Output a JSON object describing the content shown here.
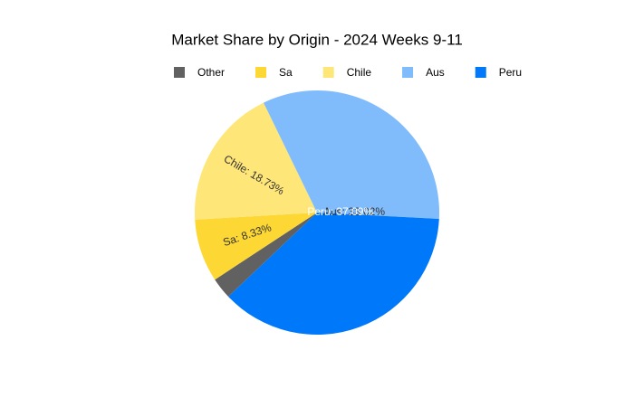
{
  "chart_data": {
    "type": "pie",
    "title": "Market Share by Origin - 2024 Weeks 9-11",
    "categories": [
      "Other",
      "Sa",
      "Chile",
      "Aus",
      "Peru"
    ],
    "values": [
      2.83,
      8.33,
      18.73,
      33.02,
      37.09
    ],
    "value_labels": [
      null,
      "Sa: 8.33%",
      "Chile: 18.73%",
      "Aus: 33.02%",
      "Peru: 37.09%"
    ],
    "colors": [
      "#616161",
      "#fdd835",
      "#ffe678",
      "#80bcfb",
      "#0078fa"
    ],
    "legend": "top"
  }
}
